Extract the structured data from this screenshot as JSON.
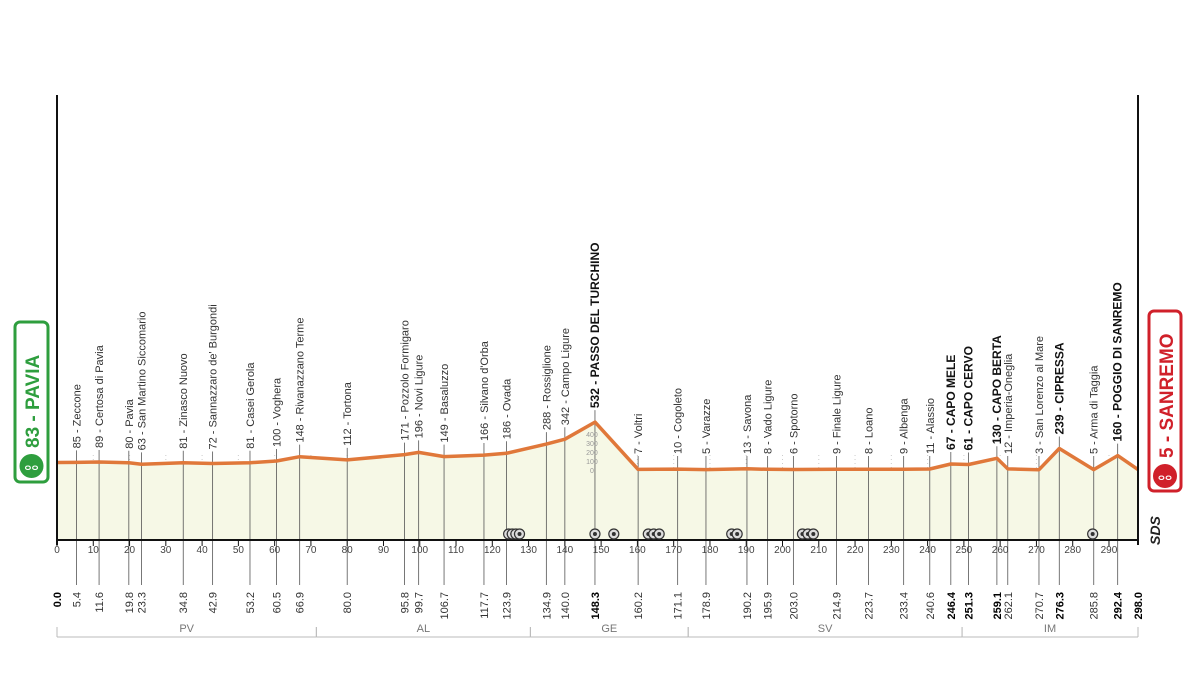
{
  "chart_data": {
    "type": "area",
    "xlim": [
      0,
      298
    ],
    "x_ticks": [
      0,
      10,
      20,
      30,
      40,
      50,
      60,
      70,
      80,
      90,
      100,
      110,
      120,
      130,
      140,
      150,
      160,
      170,
      180,
      190,
      200,
      210,
      220,
      230,
      240,
      250,
      260,
      270,
      280,
      290
    ],
    "elevation_scale_ticks": [
      0,
      100,
      200,
      300,
      400
    ],
    "grid": true,
    "line_color": "#e0783a",
    "fill_color": "#f6f8e6",
    "start": {
      "label": "83 - PAVIA",
      "km": 0.0,
      "elevation": 83,
      "color": "#2e9e3e"
    },
    "finish": {
      "label": "5 - SANREMO",
      "km": 298.0,
      "elevation": 5,
      "color": "#d0202a"
    },
    "waypoints": [
      {
        "km": 0.0,
        "km_label": "0.0",
        "elevation": 83,
        "name": "",
        "bold": true
      },
      {
        "km": 5.4,
        "km_label": "5.4",
        "elevation": 85,
        "name": "85 - Zeccone",
        "bold": false
      },
      {
        "km": 11.6,
        "km_label": "11.6",
        "elevation": 89,
        "name": "89 - Certosa di Pavia",
        "bold": false
      },
      {
        "km": 19.8,
        "km_label": "19.8",
        "elevation": 80,
        "name": "80 - Pavia",
        "bold": false
      },
      {
        "km": 23.3,
        "km_label": "23.3",
        "elevation": 63,
        "name": "63 - San Martino Siccomario",
        "bold": false
      },
      {
        "km": 34.8,
        "km_label": "34.8",
        "elevation": 81,
        "name": "81 - Zinasco Nuovo",
        "bold": false
      },
      {
        "km": 42.9,
        "km_label": "42.9",
        "elevation": 72,
        "name": "72 - Sannazzaro de' Burgondi",
        "bold": false
      },
      {
        "km": 53.2,
        "km_label": "53.2",
        "elevation": 81,
        "name": "81 - Casei Gerola",
        "bold": false
      },
      {
        "km": 60.5,
        "km_label": "60.5",
        "elevation": 100,
        "name": "100 - Voghera",
        "bold": false
      },
      {
        "km": 66.9,
        "km_label": "66.9",
        "elevation": 148,
        "name": "148 - Rivanazzano Terme",
        "bold": false
      },
      {
        "km": 80.0,
        "km_label": "80.0",
        "elevation": 112,
        "name": "112 - Tortona",
        "bold": false
      },
      {
        "km": 95.8,
        "km_label": "95.8",
        "elevation": 171,
        "name": "171 - Pozzolo Formigaro",
        "bold": false
      },
      {
        "km": 99.7,
        "km_label": "99.7",
        "elevation": 196,
        "name": "196 - Novi Ligure",
        "bold": false
      },
      {
        "km": 106.7,
        "km_label": "106.7",
        "elevation": 149,
        "name": "149 - Basaluzzo",
        "bold": false
      },
      {
        "km": 117.7,
        "km_label": "117.7",
        "elevation": 166,
        "name": "166 - Silvano d'Orba",
        "bold": false
      },
      {
        "km": 123.9,
        "km_label": "123.9",
        "elevation": 186,
        "name": "186 - Ovada",
        "bold": false
      },
      {
        "km": 134.9,
        "km_label": "134.9",
        "elevation": 288,
        "name": "288 - Rossiglione",
        "bold": false
      },
      {
        "km": 140.0,
        "km_label": "140.0",
        "elevation": 342,
        "name": "342 - Campo Ligure",
        "bold": false
      },
      {
        "km": 148.3,
        "km_label": "148.3",
        "elevation": 532,
        "name": "532 - PASSO DEL TURCHINO",
        "bold": true
      },
      {
        "km": 160.2,
        "km_label": "160.2",
        "elevation": 7,
        "name": "7 - Voltri",
        "bold": false
      },
      {
        "km": 171.1,
        "km_label": "171.1",
        "elevation": 10,
        "name": "10 - Cogoleto",
        "bold": false
      },
      {
        "km": 178.9,
        "km_label": "178.9",
        "elevation": 5,
        "name": "5 - Varazze",
        "bold": false
      },
      {
        "km": 190.2,
        "km_label": "190.2",
        "elevation": 13,
        "name": "13 - Savona",
        "bold": false
      },
      {
        "km": 195.9,
        "km_label": "195.9",
        "elevation": 8,
        "name": "8 - Vado Ligure",
        "bold": false
      },
      {
        "km": 203.0,
        "km_label": "203.0",
        "elevation": 6,
        "name": "6 - Spotorno",
        "bold": false
      },
      {
        "km": 214.9,
        "km_label": "214.9",
        "elevation": 9,
        "name": "9 - Finale Ligure",
        "bold": false
      },
      {
        "km": 223.7,
        "km_label": "223.7",
        "elevation": 8,
        "name": "8 - Loano",
        "bold": false
      },
      {
        "km": 233.4,
        "km_label": "233.4",
        "elevation": 9,
        "name": "9 - Albenga",
        "bold": false
      },
      {
        "km": 240.6,
        "km_label": "240.6",
        "elevation": 11,
        "name": "11 - Alassio",
        "bold": false
      },
      {
        "km": 246.4,
        "km_label": "246.4",
        "elevation": 67,
        "name": "67 - CAPO MELE",
        "bold": true
      },
      {
        "km": 251.3,
        "km_label": "251.3",
        "elevation": 61,
        "name": "61 - CAPO CERVO",
        "bold": true
      },
      {
        "km": 259.1,
        "km_label": "259.1",
        "elevation": 130,
        "name": "130 - CAPO BERTA",
        "bold": true
      },
      {
        "km": 262.1,
        "km_label": "262.1",
        "elevation": 12,
        "name": "12 - Imperia-Oneglia",
        "bold": false
      },
      {
        "km": 270.7,
        "km_label": "270.7",
        "elevation": 3,
        "name": "3 - San Lorenzo al Mare",
        "bold": false
      },
      {
        "km": 276.3,
        "km_label": "276.3",
        "elevation": 239,
        "name": "239 - CIPRESSA",
        "bold": true
      },
      {
        "km": 285.8,
        "km_label": "285.8",
        "elevation": 5,
        "name": "5 - Arma di Taggia",
        "bold": false
      },
      {
        "km": 292.4,
        "km_label": "292.4",
        "elevation": 160,
        "name": "160 - POGGIO DI SANREMO",
        "bold": true
      },
      {
        "km": 298.0,
        "km_label": "298.0",
        "elevation": 5,
        "name": "",
        "bold": true
      }
    ],
    "markers_km": [
      124.5,
      125.5,
      126.5,
      127.5,
      148.3,
      153.5,
      163,
      164.5,
      166,
      186,
      187.5,
      205.5,
      207,
      208.5,
      285.5
    ],
    "regions": [
      {
        "label": "PV",
        "from": 0,
        "to": 71.5
      },
      {
        "label": "AL",
        "from": 71.5,
        "to": 130.5
      },
      {
        "label": "GE",
        "from": 130.5,
        "to": 174
      },
      {
        "label": "SV",
        "from": 174,
        "to": 249.5
      },
      {
        "label": "IM",
        "from": 249.5,
        "to": 298
      }
    ]
  },
  "logo": "SDS"
}
